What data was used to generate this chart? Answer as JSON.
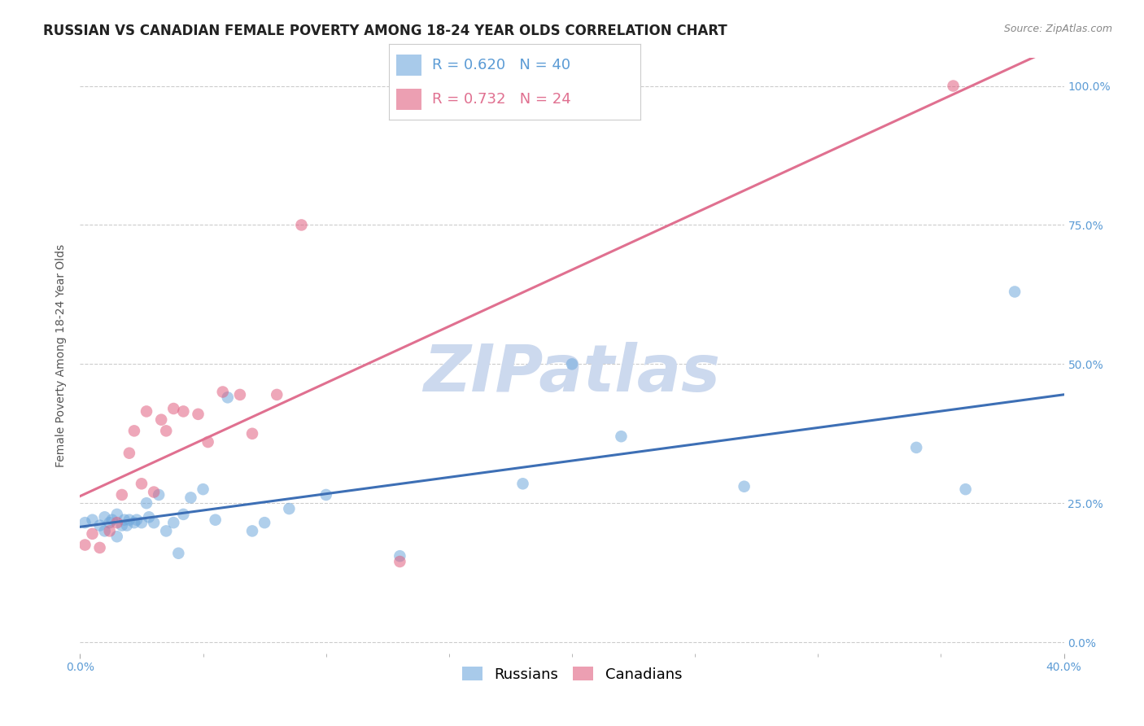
{
  "title": "RUSSIAN VS CANADIAN FEMALE POVERTY AMONG 18-24 YEAR OLDS CORRELATION CHART",
  "source": "Source: ZipAtlas.com",
  "ylabel": "Female Poverty Among 18-24 Year Olds",
  "xlim": [
    0.0,
    0.4
  ],
  "ylim": [
    -0.02,
    1.05
  ],
  "russian_R": 0.62,
  "russian_N": 40,
  "canadian_R": 0.732,
  "canadian_N": 24,
  "russian_color": "#6fa8dc",
  "canadian_color": "#e06080",
  "russian_line_color": "#3d6fb5",
  "canadian_line_color": "#e07090",
  "background_color": "#ffffff",
  "grid_color": "#cccccc",
  "watermark": "ZIPatlas",
  "watermark_color": "#ccd9ee",
  "tick_color": "#5b9bd5",
  "russians_x": [
    0.002,
    0.005,
    0.008,
    0.01,
    0.01,
    0.012,
    0.013,
    0.015,
    0.015,
    0.017,
    0.018,
    0.019,
    0.02,
    0.022,
    0.023,
    0.025,
    0.027,
    0.028,
    0.03,
    0.032,
    0.035,
    0.038,
    0.04,
    0.042,
    0.045,
    0.05,
    0.055,
    0.06,
    0.07,
    0.075,
    0.085,
    0.1,
    0.13,
    0.18,
    0.2,
    0.22,
    0.27,
    0.34,
    0.36,
    0.38
  ],
  "russians_y": [
    0.215,
    0.22,
    0.21,
    0.2,
    0.225,
    0.215,
    0.22,
    0.19,
    0.23,
    0.21,
    0.22,
    0.21,
    0.22,
    0.215,
    0.22,
    0.215,
    0.25,
    0.225,
    0.215,
    0.265,
    0.2,
    0.215,
    0.16,
    0.23,
    0.26,
    0.275,
    0.22,
    0.44,
    0.2,
    0.215,
    0.24,
    0.265,
    0.155,
    0.285,
    0.5,
    0.37,
    0.28,
    0.35,
    0.275,
    0.63
  ],
  "canadians_x": [
    0.002,
    0.005,
    0.008,
    0.012,
    0.015,
    0.017,
    0.02,
    0.022,
    0.025,
    0.027,
    0.03,
    0.033,
    0.035,
    0.038,
    0.042,
    0.048,
    0.052,
    0.058,
    0.065,
    0.07,
    0.08,
    0.09,
    0.13,
    0.355
  ],
  "canadians_y": [
    0.175,
    0.195,
    0.17,
    0.2,
    0.215,
    0.265,
    0.34,
    0.38,
    0.285,
    0.415,
    0.27,
    0.4,
    0.38,
    0.42,
    0.415,
    0.41,
    0.36,
    0.45,
    0.445,
    0.375,
    0.445,
    0.75,
    0.145,
    1.0
  ],
  "title_fontsize": 12,
  "source_fontsize": 9,
  "axis_label_fontsize": 10,
  "tick_fontsize": 10,
  "legend_fontsize": 13,
  "marker_size": 110
}
